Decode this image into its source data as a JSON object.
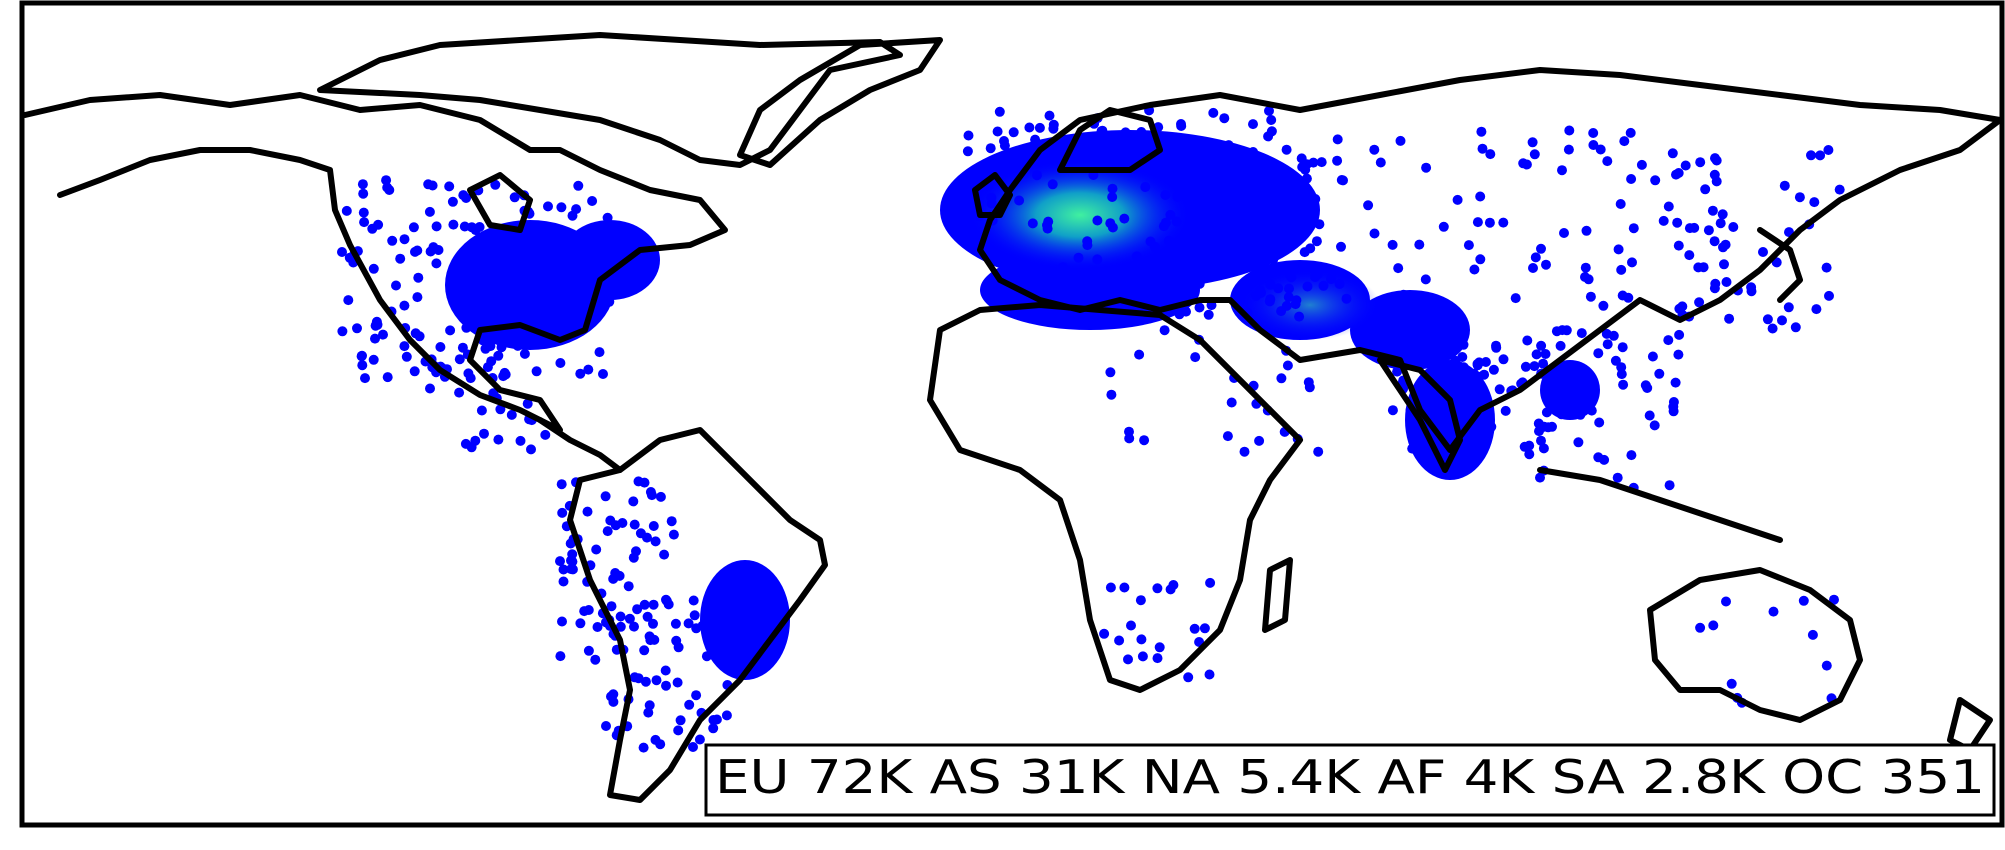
{
  "map": {
    "projection": "plate-carree",
    "point_color": "#0000ff",
    "hotspot_color": "#00e0a0",
    "coastline_color": "#000000",
    "background_color": "#ffffff"
  },
  "legend": {
    "items": [
      {
        "region": "EU",
        "count": "72K"
      },
      {
        "region": "AS",
        "count": "31K"
      },
      {
        "region": "NA",
        "count": "5.4K"
      },
      {
        "region": "AF",
        "count": "4K"
      },
      {
        "region": "SA",
        "count": "2.8K"
      },
      {
        "region": "OC",
        "count": "351"
      }
    ]
  }
}
